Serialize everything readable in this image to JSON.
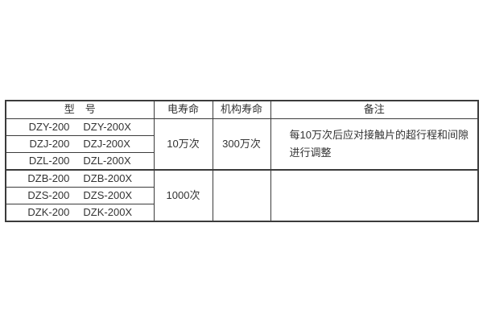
{
  "page": {
    "background": "#ffffff"
  },
  "table": {
    "colors": {
      "border": "#3b3b3b",
      "text": "#333333"
    },
    "headers": {
      "model": "型　号",
      "electrical_life": "电寿命",
      "mechanical_life": "机构寿命",
      "remarks": "备注"
    },
    "model_rows": [
      {
        "a": "DZY-200",
        "b": "DZY-200X"
      },
      {
        "a": "DZJ-200",
        "b": "DZJ-200X"
      },
      {
        "a": "DZL-200",
        "b": "DZL-200X"
      },
      {
        "a": "DZB-200",
        "b": "DZB-200X"
      },
      {
        "a": "DZS-200",
        "b": "DZS-200X"
      },
      {
        "a": "DZK-200",
        "b": "DZK-200X"
      }
    ],
    "groups": [
      {
        "electrical_life": "10万次",
        "mechanical_life": "300万次",
        "remark_line1": "每10万次后应对接触片的超行程和间隙",
        "remark_line2": "进行调整"
      },
      {
        "electrical_life": "1000次",
        "mechanical_life": "",
        "remark_line1": "",
        "remark_line2": ""
      }
    ]
  }
}
